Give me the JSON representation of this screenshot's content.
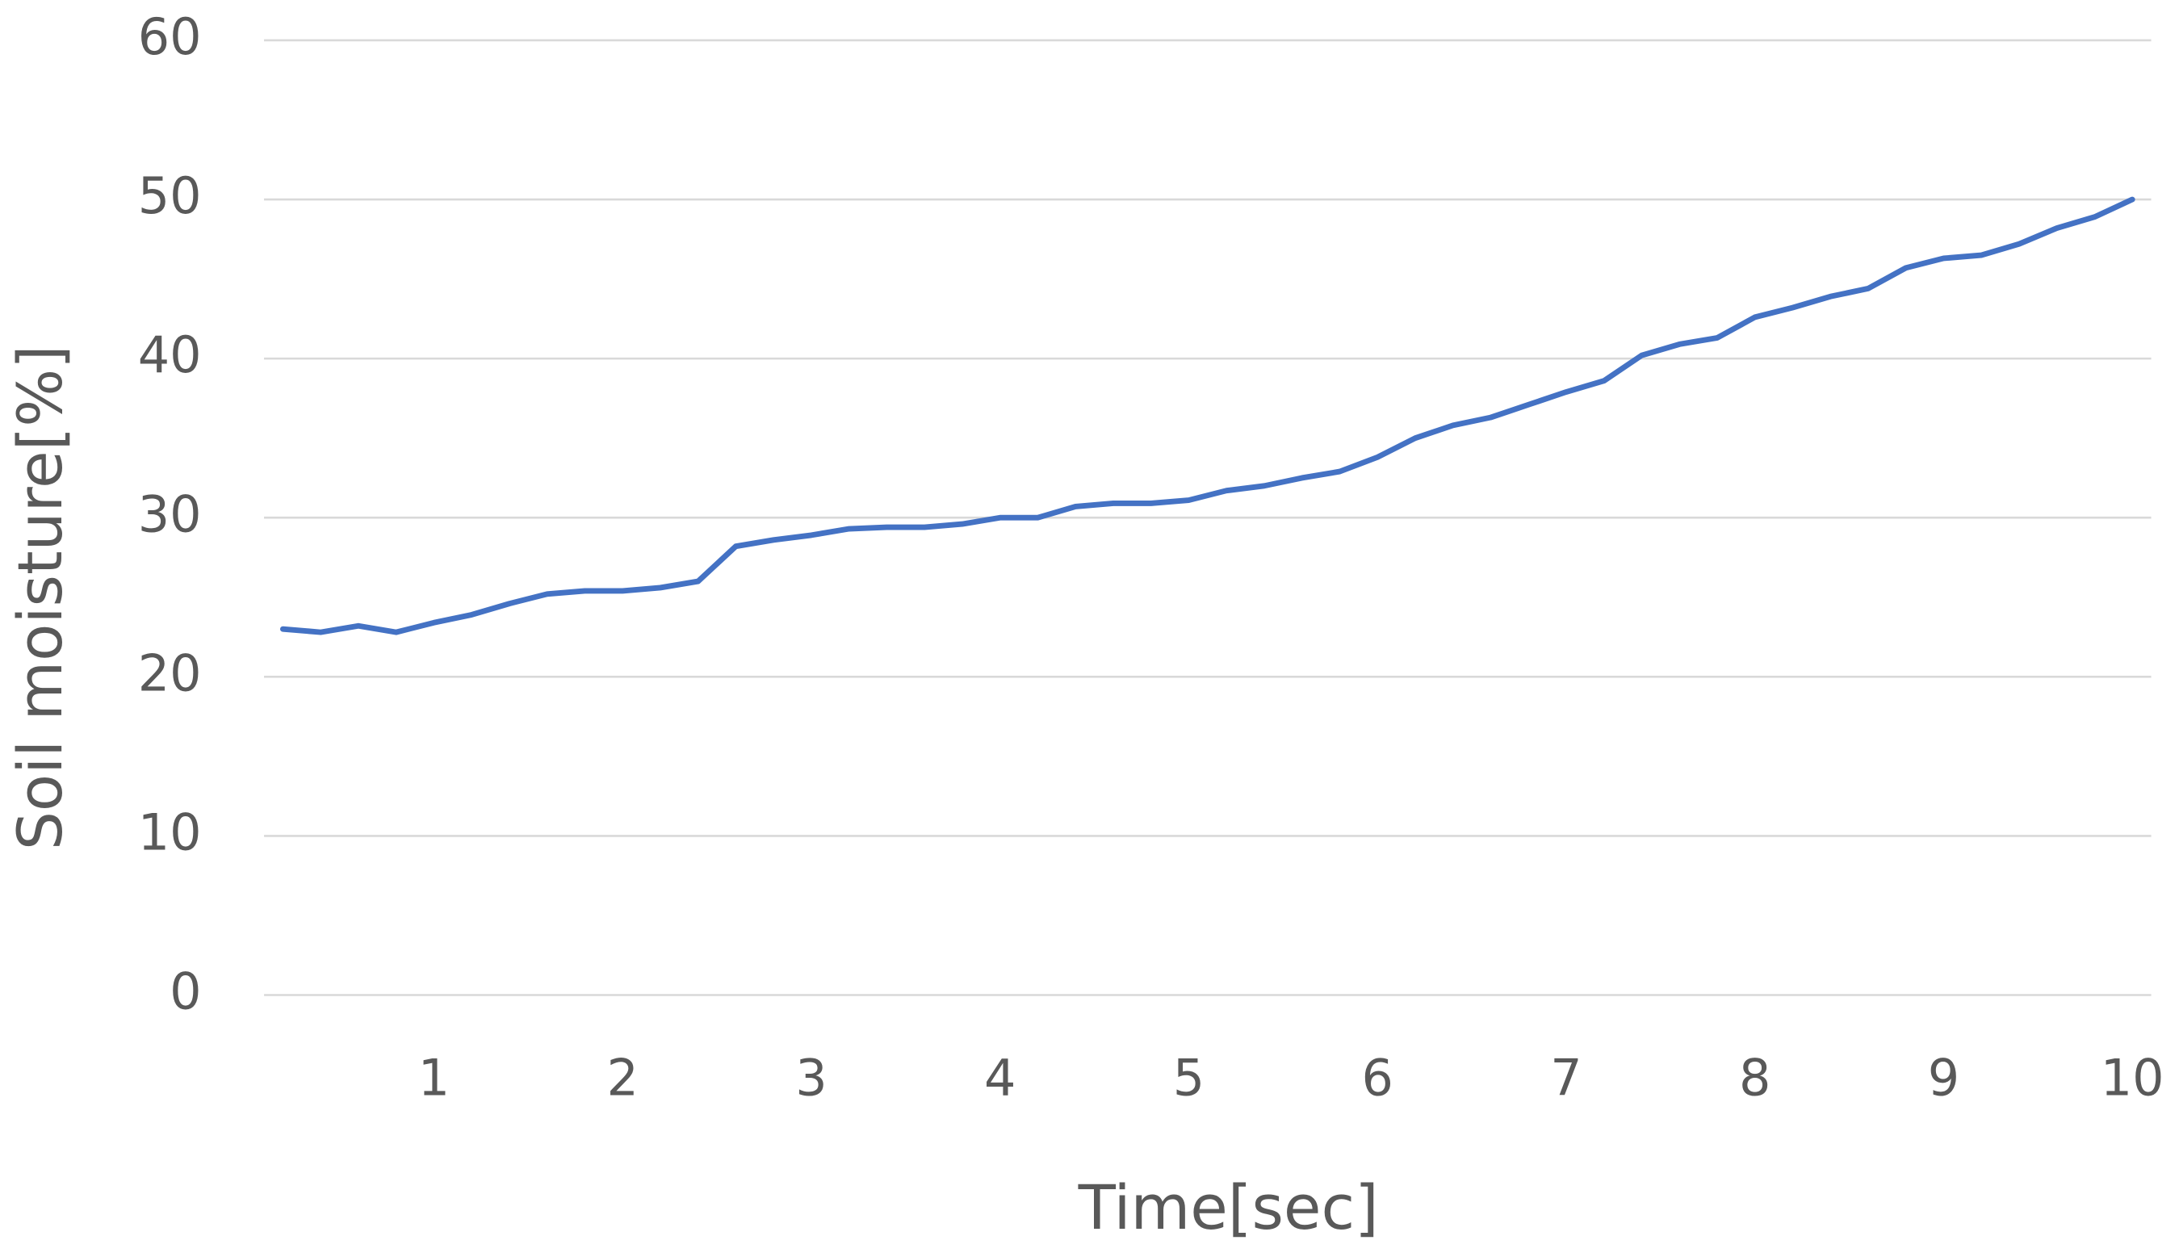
{
  "chart_data": {
    "type": "line",
    "x_label": "Time[sec]",
    "y_label": "Soil moisture[%]",
    "x": [
      0.2,
      0.4,
      0.6,
      0.8,
      1.0,
      1.2,
      1.4,
      1.6,
      1.8,
      2.0,
      2.2,
      2.4,
      2.6,
      2.8,
      3.0,
      3.2,
      3.4,
      3.6,
      3.8,
      4.0,
      4.2,
      4.4,
      4.6,
      4.8,
      5.0,
      5.2,
      5.4,
      5.6,
      5.8,
      6.0,
      6.2,
      6.4,
      6.6,
      6.8,
      7.0,
      7.2,
      7.4,
      7.6,
      7.8,
      8.0,
      8.2,
      8.4,
      8.6,
      8.8,
      9.0,
      9.2,
      9.4,
      9.6,
      9.8,
      10.0
    ],
    "series": [
      {
        "name": "Soil moisture",
        "color": "#4472c4",
        "values": [
          23.0,
          22.8,
          23.2,
          22.8,
          23.4,
          23.9,
          24.6,
          25.2,
          25.4,
          25.4,
          25.6,
          26.0,
          28.2,
          28.6,
          28.9,
          29.3,
          29.4,
          29.4,
          29.6,
          30.0,
          30.0,
          30.7,
          30.9,
          30.9,
          31.1,
          31.7,
          32.0,
          32.5,
          32.9,
          33.8,
          35.0,
          35.8,
          36.3,
          37.1,
          37.9,
          38.6,
          40.2,
          40.9,
          41.3,
          42.6,
          43.2,
          43.9,
          44.4,
          45.7,
          46.3,
          46.5,
          47.2,
          48.2,
          48.9,
          50.0
        ]
      }
    ],
    "xlim": [
      0.1,
      10.1
    ],
    "xticks": [
      1,
      2,
      3,
      4,
      5,
      6,
      7,
      8,
      9,
      10
    ],
    "ylim": [
      0,
      60
    ],
    "yticks": [
      0,
      10,
      20,
      30,
      40,
      50,
      60
    ],
    "grid": true
  }
}
